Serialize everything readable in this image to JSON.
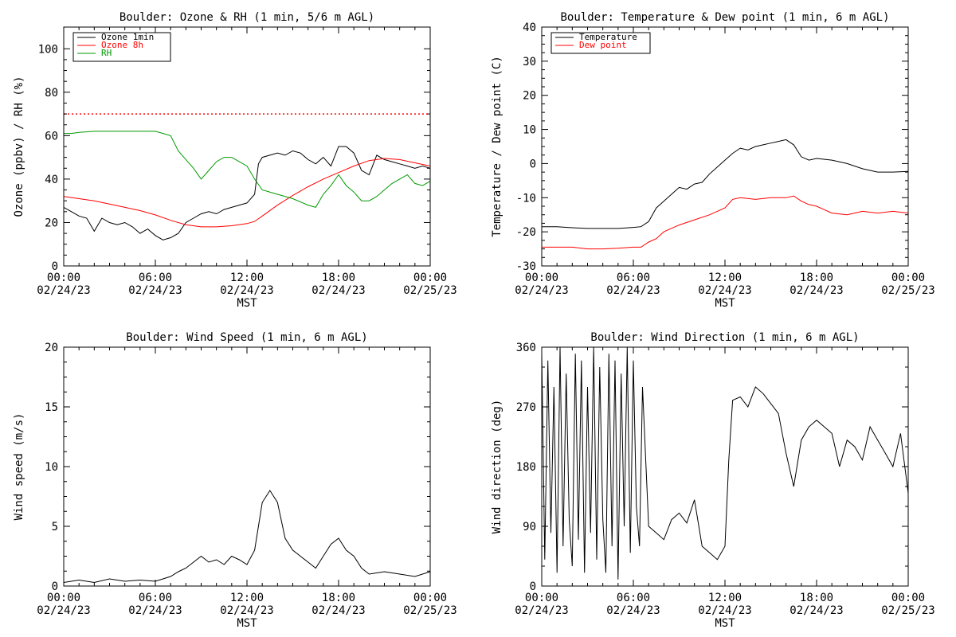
{
  "chart_data": [
    {
      "type": "line",
      "title": "Boulder: Ozone & RH (1 min, 5/6 m AGL)",
      "ylabel": "Ozone (ppbv) / RH (%)",
      "xlabel": "MST",
      "ylim": [
        0,
        110
      ],
      "yticks": [
        0,
        20,
        40,
        60,
        80,
        100
      ],
      "xlim": [
        0,
        24
      ],
      "xticks": [
        {
          "time": "00:00",
          "date": "02/24/23"
        },
        {
          "time": "06:00",
          "date": "02/24/23"
        },
        {
          "time": "12:00",
          "date": "02/24/23"
        },
        {
          "time": "18:00",
          "date": "02/24/23"
        },
        {
          "time": "00:00",
          "date": "02/25/23"
        }
      ],
      "legend_position": "top-left",
      "reference_line": {
        "y": 70,
        "color": "#ff0000",
        "style": "dotted"
      },
      "series": [
        {
          "name": "Ozone 1min",
          "color": "#000000",
          "x": [
            0,
            0.5,
            1,
            1.5,
            2,
            2.5,
            3,
            3.5,
            4,
            4.5,
            5,
            5.5,
            6,
            6.5,
            7,
            7.5,
            8,
            8.5,
            9,
            9.5,
            10,
            10.5,
            11,
            11.5,
            12,
            12.5,
            12.75,
            13,
            13.5,
            14,
            14.5,
            15,
            15.5,
            16,
            16.5,
            17,
            17.5,
            18,
            18.5,
            19,
            19.5,
            20,
            20.5,
            21,
            21.5,
            22,
            22.5,
            23,
            23.5,
            24
          ],
          "y": [
            27,
            25,
            23,
            22,
            16,
            22,
            20,
            19,
            20,
            18,
            15,
            17,
            14,
            12,
            13,
            15,
            20,
            22,
            24,
            25,
            24,
            26,
            27,
            28,
            29,
            33,
            47,
            50,
            51,
            52,
            51,
            53,
            52,
            49,
            47,
            50,
            46,
            55,
            55,
            52,
            44,
            42,
            51,
            49,
            48,
            47,
            46,
            45,
            46,
            45
          ]
        },
        {
          "name": "Ozone 8h",
          "color": "#ff0000",
          "x": [
            0,
            1,
            2,
            3,
            4,
            5,
            6,
            7,
            8,
            9,
            10,
            11,
            12,
            12.5,
            13,
            14,
            15,
            16,
            17,
            18,
            19,
            20,
            21,
            22,
            23,
            24
          ],
          "y": [
            32,
            31,
            30,
            28.5,
            27,
            25.5,
            23.5,
            21,
            19,
            18,
            18,
            18.5,
            19.5,
            20.5,
            23,
            28,
            32.5,
            36.5,
            40,
            43,
            46,
            48.5,
            49.5,
            49,
            47.5,
            46
          ]
        },
        {
          "name": "RH",
          "color": "#009900",
          "x": [
            0,
            0.5,
            1,
            2,
            3,
            4,
            5,
            6,
            6.5,
            7,
            7.5,
            8,
            8.5,
            9,
            9.5,
            10,
            10.5,
            11,
            11.5,
            12,
            12.5,
            13,
            14,
            15,
            16,
            16.5,
            17,
            17.5,
            18,
            18.5,
            19,
            19.5,
            20,
            20.5,
            21,
            21.5,
            22,
            22.5,
            23,
            23.5,
            24
          ],
          "y": [
            61,
            61,
            61.5,
            62,
            62,
            62,
            62,
            62,
            61,
            60,
            53,
            49,
            45,
            40,
            44,
            48,
            50,
            50,
            48,
            46,
            40,
            35,
            33,
            31,
            28,
            27,
            33,
            37,
            42,
            37,
            34,
            30,
            30,
            32,
            35,
            38,
            40,
            42,
            38,
            37,
            39
          ]
        }
      ]
    },
    {
      "type": "line",
      "title": "Boulder: Temperature & Dew point (1 min, 6 m AGL)",
      "ylabel": "Temperature / Dew point (C)",
      "xlabel": "MST",
      "ylim": [
        -30,
        40
      ],
      "yticks": [
        -30,
        -20,
        -10,
        0,
        10,
        20,
        30,
        40
      ],
      "xlim": [
        0,
        24
      ],
      "xticks": [
        {
          "time": "00:00",
          "date": "02/24/23"
        },
        {
          "time": "06:00",
          "date": "02/24/23"
        },
        {
          "time": "12:00",
          "date": "02/24/23"
        },
        {
          "time": "18:00",
          "date": "02/24/23"
        },
        {
          "time": "00:00",
          "date": "02/25/23"
        }
      ],
      "legend_position": "top-left",
      "series": [
        {
          "name": "Temperature",
          "color": "#000000",
          "x": [
            0,
            1,
            2,
            3,
            4,
            5,
            6,
            6.5,
            7,
            7.5,
            8,
            8.5,
            9,
            9.5,
            10,
            10.5,
            11,
            11.5,
            12,
            12.5,
            13,
            13.5,
            14,
            14.5,
            15,
            15.5,
            16,
            16.5,
            17,
            17.5,
            18,
            19,
            20,
            21,
            22,
            23,
            24
          ],
          "y": [
            -18.5,
            -18.5,
            -18.8,
            -19,
            -19,
            -19,
            -18.7,
            -18.5,
            -17,
            -13,
            -11,
            -9,
            -7,
            -7.5,
            -6,
            -5.5,
            -3,
            -1,
            1,
            3,
            4.5,
            4,
            5,
            5.5,
            6,
            6.5,
            7,
            5.5,
            2,
            1,
            1.5,
            1,
            0,
            -1.5,
            -2.5,
            -2.5,
            -2.3
          ]
        },
        {
          "name": "Dew point",
          "color": "#ff0000",
          "x": [
            0,
            1,
            2,
            3,
            4,
            5,
            6,
            6.5,
            7,
            7.5,
            8,
            9,
            10,
            11,
            12,
            12.5,
            13,
            14,
            15,
            16,
            16.5,
            17,
            17.5,
            18,
            18.5,
            19,
            20,
            21,
            22,
            23,
            24
          ],
          "y": [
            -24.5,
            -24.5,
            -24.5,
            -25,
            -25,
            -24.8,
            -24.5,
            -24.5,
            -23,
            -22,
            -20,
            -18,
            -16.5,
            -15,
            -13,
            -10.5,
            -10,
            -10.5,
            -10,
            -10,
            -9.5,
            -11,
            -12,
            -12.5,
            -13.5,
            -14.5,
            -15,
            -14,
            -14.5,
            -14,
            -14.5
          ]
        }
      ]
    },
    {
      "type": "line",
      "title": "Boulder: Wind Speed (1 min, 6 m AGL)",
      "ylabel": "Wind speed (m/s)",
      "xlabel": "MST",
      "ylim": [
        0,
        20
      ],
      "yticks": [
        0,
        5,
        10,
        15,
        20
      ],
      "xlim": [
        0,
        24
      ],
      "xticks": [
        {
          "time": "00:00",
          "date": "02/24/23"
        },
        {
          "time": "06:00",
          "date": "02/24/23"
        },
        {
          "time": "12:00",
          "date": "02/24/23"
        },
        {
          "time": "18:00",
          "date": "02/24/23"
        },
        {
          "time": "00:00",
          "date": "02/25/23"
        }
      ],
      "series": [
        {
          "color": "#000000",
          "x": [
            0,
            1,
            2,
            3,
            4,
            5,
            6,
            7,
            7.5,
            8,
            8.5,
            9,
            9.5,
            10,
            10.5,
            11,
            11.5,
            12,
            12.5,
            13,
            13.5,
            14,
            14.5,
            15,
            15.5,
            16,
            16.5,
            17,
            17.5,
            18,
            18.5,
            19,
            19.5,
            20,
            21,
            22,
            23,
            24
          ],
          "y": [
            0.3,
            0.5,
            0.3,
            0.6,
            0.4,
            0.5,
            0.4,
            0.8,
            1.2,
            1.5,
            2,
            2.5,
            2,
            2.2,
            1.8,
            2.5,
            2.2,
            1.8,
            3,
            7,
            8,
            7,
            4,
            3,
            2.5,
            2,
            1.5,
            2.5,
            3.5,
            4,
            3,
            2.5,
            1.5,
            1,
            1.2,
            1,
            0.8,
            1.2
          ]
        }
      ]
    },
    {
      "type": "line",
      "title": "Boulder: Wind Direction (1 min, 6 m AGL)",
      "ylabel": "Wind direction (deg)",
      "xlabel": "MST",
      "ylim": [
        0,
        360
      ],
      "yticks": [
        0,
        90,
        180,
        270,
        360
      ],
      "xlim": [
        0,
        24
      ],
      "xticks": [
        {
          "time": "00:00",
          "date": "02/24/23"
        },
        {
          "time": "06:00",
          "date": "02/24/23"
        },
        {
          "time": "12:00",
          "date": "02/24/23"
        },
        {
          "time": "18:00",
          "date": "02/24/23"
        },
        {
          "time": "00:00",
          "date": "02/25/23"
        }
      ],
      "series": [
        {
          "color": "#000000",
          "x": [
            0,
            0.2,
            0.4,
            0.6,
            0.8,
            1,
            1.2,
            1.4,
            1.6,
            1.8,
            2,
            2.2,
            2.4,
            2.6,
            2.8,
            3,
            3.2,
            3.4,
            3.6,
            3.8,
            4,
            4.2,
            4.4,
            4.6,
            4.8,
            5,
            5.2,
            5.4,
            5.6,
            5.8,
            6,
            6.2,
            6.4,
            6.6,
            7,
            7.5,
            8,
            8.5,
            9,
            9.5,
            10,
            10.5,
            11,
            11.5,
            12,
            12.25,
            12.5,
            13,
            13.5,
            14,
            14.5,
            15,
            15.5,
            16,
            16.5,
            17,
            17.5,
            18,
            18.5,
            19,
            19.5,
            20,
            20.5,
            21,
            21.5,
            22,
            22.5,
            23,
            23.5,
            24
          ],
          "y": [
            350,
            40,
            340,
            80,
            300,
            20,
            360,
            60,
            320,
            100,
            30,
            350,
            70,
            340,
            20,
            300,
            80,
            360,
            40,
            330,
            100,
            20,
            350,
            60,
            340,
            10,
            320,
            90,
            360,
            50,
            340,
            120,
            60,
            300,
            90,
            80,
            70,
            100,
            110,
            95,
            130,
            60,
            50,
            40,
            60,
            190,
            280,
            285,
            270,
            300,
            290,
            275,
            260,
            200,
            150,
            220,
            240,
            250,
            240,
            230,
            180,
            220,
            210,
            190,
            240,
            220,
            200,
            180,
            230,
            140
          ]
        }
      ]
    }
  ]
}
